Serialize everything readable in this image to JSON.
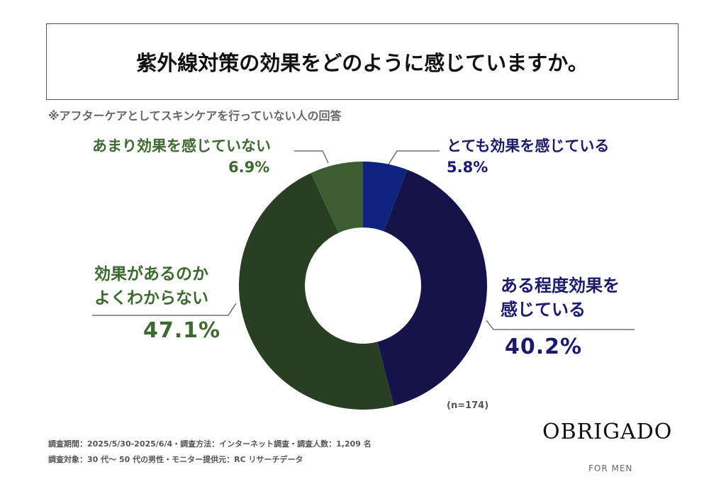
{
  "chart_data": {
    "type": "donut",
    "title": "紫外線対策の効果をどのように感じていますか。",
    "subtitle": "※アフターケアとしてスキンケアを行っていない人の回答",
    "categories": [
      "とても効果を感じている",
      "ある程度効果を\n感じている",
      "効果があるのか\nよくわからない",
      "あまり効果を感じていない"
    ],
    "values": [
      5.8,
      40.2,
      47.1,
      6.9
    ],
    "value_labels": [
      "5.8%",
      "40.2%",
      "47.1%",
      "6.9%"
    ],
    "colors": [
      "#0d237d",
      "#15134a",
      "#283f24",
      "#3b5e31"
    ],
    "sample_size": "(n=174)"
  },
  "footer": {
    "line1": "調査期間：2025/5/30-2025/6/4・調査方法：インターネット調査・調査人数：1,209 名",
    "line2": "調査対象：30 代〜 50 代の男性・モニター提供元：RC リサーチデータ",
    "brand": "OBRIGADO",
    "brand_sub": "FOR MEN"
  }
}
